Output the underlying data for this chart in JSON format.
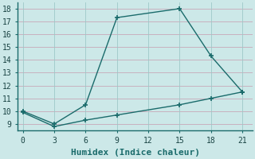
{
  "title": "",
  "xlabel": "Humidex (Indice chaleur)",
  "background_color": "#cce8e8",
  "line_color": "#1a6b6b",
  "grid_color": "#c8a8a8",
  "grid_color2": "#b8d8d8",
  "line1_x": [
    0,
    3,
    6,
    9,
    15,
    18,
    21
  ],
  "line1_y": [
    10,
    9,
    10.5,
    17.3,
    18,
    14.3,
    11.5
  ],
  "line2_x": [
    0,
    3,
    6,
    9,
    15,
    18,
    21
  ],
  "line2_y": [
    9.9,
    8.8,
    9.3,
    9.7,
    10.5,
    11.0,
    11.5
  ],
  "xlim": [
    -0.5,
    22
  ],
  "ylim": [
    8.5,
    18.5
  ],
  "xticks": [
    0,
    3,
    6,
    9,
    12,
    15,
    18,
    21
  ],
  "yticks": [
    9,
    10,
    11,
    12,
    13,
    14,
    15,
    16,
    17,
    18
  ],
  "markersize": 4,
  "linewidth": 1.0,
  "fontsize_label": 8,
  "fontsize_tick": 7
}
